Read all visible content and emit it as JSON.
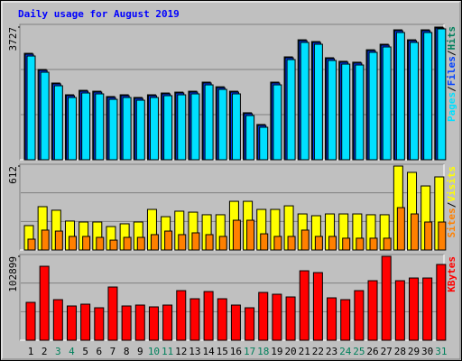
{
  "chart_data": [
    {
      "type": "bar",
      "title": "Daily usage for August 2019",
      "ylim": [
        0,
        3727
      ],
      "yticks": [
        3727
      ],
      "legend_separator": "/",
      "series": [
        {
          "name": "Hits",
          "color": "#00805c",
          "values": [
            2990,
            2535,
            2155,
            1825,
            1950,
            1925,
            1775,
            1825,
            1750,
            1825,
            1875,
            1900,
            1925,
            2180,
            2050,
            1925,
            1320,
            990,
            2180,
            2890,
            3370,
            3320,
            2865,
            2765,
            2740,
            3090,
            3245,
            3650,
            3370,
            3650,
            3727
          ]
        },
        {
          "name": "Files",
          "color": "#0040ff",
          "values": [
            2965,
            2510,
            2130,
            1800,
            1925,
            1900,
            1750,
            1800,
            1725,
            1800,
            1850,
            1875,
            1900,
            2155,
            2025,
            1900,
            1295,
            965,
            2155,
            2865,
            3345,
            3295,
            2840,
            2740,
            2715,
            3065,
            3220,
            3625,
            3345,
            3625,
            3702
          ]
        },
        {
          "name": "Pages",
          "color": "#00e0ff",
          "values": [
            2915,
            2459,
            2079,
            1749,
            1876,
            1851,
            1698,
            1749,
            1673,
            1749,
            1800,
            1825,
            1851,
            2104,
            1977,
            1851,
            1242,
            913,
            2104,
            2814,
            3296,
            3245,
            2789,
            2687,
            2662,
            3017,
            3169,
            3574,
            3296,
            3574,
            3676
          ]
        }
      ]
    },
    {
      "type": "bar",
      "ylim": [
        0,
        612
      ],
      "yticks": [
        612
      ],
      "legend_separator": "/",
      "series": [
        {
          "name": "Visits",
          "color": "#ffff00",
          "values": [
            178,
            316,
            290,
            211,
            204,
            204,
            171,
            191,
            204,
            296,
            243,
            283,
            276,
            257,
            257,
            355,
            355,
            296,
            296,
            322,
            263,
            250,
            263,
            263,
            263,
            257,
            257,
            612,
            566,
            467,
            533
          ]
        },
        {
          "name": "Sites",
          "color": "#ff8000",
          "values": [
            79,
            145,
            138,
            99,
            99,
            92,
            72,
            92,
            92,
            112,
            138,
            112,
            125,
            112,
            99,
            217,
            217,
            118,
            99,
            99,
            145,
            99,
            99,
            86,
            86,
            86,
            86,
            309,
            263,
            204,
            204
          ]
        }
      ]
    },
    {
      "type": "bar",
      "ylim": [
        0,
        102899
      ],
      "yticks": [
        102899
      ],
      "categories": [
        "1",
        "2",
        "3",
        "4",
        "5",
        "6",
        "7",
        "8",
        "9",
        "10",
        "11",
        "12",
        "13",
        "14",
        "15",
        "16",
        "17",
        "18",
        "19",
        "20",
        "21",
        "22",
        "23",
        "24",
        "25",
        "26",
        "27",
        "28",
        "29",
        "30",
        "31"
      ],
      "category_colors": [
        "#000000",
        "#000000",
        "#00805c",
        "#00805c",
        "#000000",
        "#000000",
        "#000000",
        "#000000",
        "#000000",
        "#00805c",
        "#00805c",
        "#000000",
        "#000000",
        "#000000",
        "#000000",
        "#000000",
        "#00805c",
        "#00805c",
        "#000000",
        "#000000",
        "#000000",
        "#000000",
        "#000000",
        "#00805c",
        "#00805c",
        "#000000",
        "#000000",
        "#000000",
        "#000000",
        "#000000",
        "#00805c"
      ],
      "series": [
        {
          "name": "KBytes",
          "color": "#ff0000",
          "values": [
            46452,
            90692,
            49770,
            42028,
            44240,
            39816,
            65254,
            42028,
            43134,
            40922,
            43134,
            60830,
            50876,
            59724,
            50876,
            43134,
            39816,
            58618,
            56406,
            53088,
            85162,
            82950,
            51982,
            49770,
            60830,
            72996,
            102899,
            72996,
            76314,
            76314,
            92904
          ]
        }
      ]
    }
  ]
}
